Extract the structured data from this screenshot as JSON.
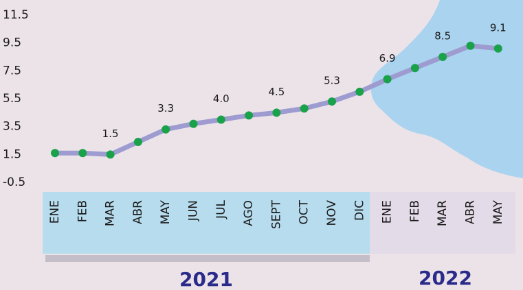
{
  "chart_data": {
    "type": "line",
    "categories": [
      "ENE",
      "FEB",
      "MAR",
      "ABR",
      "MAY",
      "JUN",
      "JUL",
      "AGO",
      "SEPT",
      "OCT",
      "NOV",
      "DIC",
      "ENE",
      "FEB",
      "MAR",
      "ABR",
      "MAY"
    ],
    "groups": [
      {
        "label": "2021"
      },
      {
        "label": "2022"
      }
    ],
    "series": [
      {
        "color": "#9d9bd0",
        "marker_color": "#1aa24a",
        "values": [
          1.6,
          1.6,
          1.5,
          2.4,
          3.3,
          3.7,
          4.0,
          4.3,
          4.5,
          4.8,
          5.3,
          6.0,
          6.9,
          7.7,
          8.5,
          9.3,
          9.1
        ],
        "value_labels": [
          "",
          "",
          "1.5",
          "",
          "3.3",
          "",
          "4.0",
          "",
          "4.5",
          "",
          "5.3",
          "",
          "6.9",
          "",
          "8.5",
          "",
          "9.1"
        ]
      }
    ],
    "ylim": [
      -0.5,
      11.5
    ],
    "yticks": [
      11.5,
      9.5,
      7.5,
      5.5,
      3.5,
      1.5,
      -0.5
    ]
  }
}
